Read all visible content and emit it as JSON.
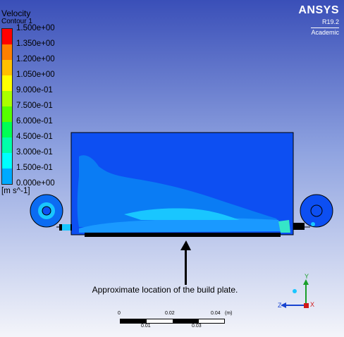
{
  "legend": {
    "title": "Velocity",
    "subtitle": "Contour 1",
    "unit": "[m s^-1]",
    "labels": [
      "1.500e+00",
      "1.350e+00",
      "1.200e+00",
      "1.050e+00",
      "9.000e-01",
      "7.500e-01",
      "6.000e-01",
      "4.500e-01",
      "3.000e-01",
      "1.500e-01",
      "0.000e+00"
    ],
    "colors": [
      "#ff0000",
      "#ff7f00",
      "#ffbf00",
      "#ffff00",
      "#aaff00",
      "#55ff00",
      "#00ff55",
      "#00ffaa",
      "#00ffff",
      "#00aaff",
      "#0055ff"
    ]
  },
  "brand": {
    "name": "ANSYS",
    "version": "R19.2",
    "edition": "Academic"
  },
  "annotation": {
    "caption": "Approximate location of the build plate."
  },
  "scale": {
    "top_ticks": [
      "0",
      "0.02",
      "0.04",
      "(m)"
    ],
    "bottom_ticks": [
      "0.01",
      "0.03"
    ]
  },
  "triad": {
    "y_label": "Y",
    "z_label": "Z",
    "x_label": "X"
  }
}
